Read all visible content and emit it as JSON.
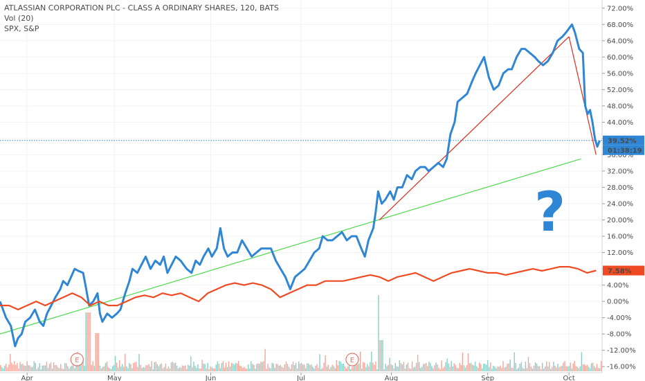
{
  "legend": {
    "title": "ATLASSIAN CORPORATION PLC - CLASS A ORDINARY SHARES, 120, BATS",
    "vol": "Vol (20)",
    "compare": "SPX, S&P"
  },
  "annotation_text": "?",
  "earnings_marker": "E",
  "chart_data": {
    "type": "line",
    "yaxis": {
      "unit": "%",
      "ylim": [
        -17.5,
        74
      ],
      "ticks": [
        "72.00%",
        "68.00%",
        "64.00%",
        "60.00%",
        "56.00%",
        "52.00%",
        "48.00%",
        "44.00%",
        "40.00%",
        "36.00%",
        "32.00%",
        "28.00%",
        "24.00%",
        "20.00%",
        "16.00%",
        "12.00%",
        "8.00%",
        "4.00%",
        "0.00%",
        "-4.00%",
        "-8.00%",
        "-12.00%",
        "-16.00%"
      ],
      "tick_values": [
        72,
        68,
        64,
        60,
        56,
        52,
        48,
        44,
        40,
        36,
        32,
        28,
        24,
        20,
        16,
        12,
        8,
        4,
        0,
        -4,
        -8,
        -12,
        -16
      ]
    },
    "xaxis": {
      "xlim": [
        0,
        1
      ],
      "months": [
        {
          "label": "Apr",
          "pos": 0.045
        },
        {
          "label": "May",
          "pos": 0.19
        },
        {
          "label": "Jun",
          "pos": 0.35
        },
        {
          "label": "Jul",
          "pos": 0.5
        },
        {
          "label": "Aug",
          "pos": 0.65
        },
        {
          "label": "Sep",
          "pos": 0.81
        },
        {
          "label": "Oct",
          "pos": 0.945
        }
      ]
    },
    "series": [
      {
        "color": "#2f86d4",
        "points": [
          [
            0,
            0
          ],
          [
            0.01,
            -4
          ],
          [
            0.018,
            -6
          ],
          [
            0.025,
            -11
          ],
          [
            0.03,
            -9
          ],
          [
            0.036,
            -8
          ],
          [
            0.042,
            -5
          ],
          [
            0.05,
            -4
          ],
          [
            0.058,
            -2
          ],
          [
            0.066,
            -5
          ],
          [
            0.072,
            -6
          ],
          [
            0.078,
            -3
          ],
          [
            0.085,
            -1
          ],
          [
            0.092,
            1
          ],
          [
            0.1,
            3
          ],
          [
            0.105,
            5
          ],
          [
            0.112,
            4
          ],
          [
            0.118,
            6
          ],
          [
            0.124,
            8
          ],
          [
            0.13,
            7.5
          ],
          [
            0.138,
            7
          ],
          [
            0.142,
            4
          ],
          [
            0.148,
            -1
          ],
          [
            0.155,
            0
          ],
          [
            0.162,
            2
          ],
          [
            0.166,
            -3
          ],
          [
            0.17,
            -5
          ],
          [
            0.178,
            -3
          ],
          [
            0.186,
            -4
          ],
          [
            0.194,
            -3
          ],
          [
            0.2,
            -2
          ],
          [
            0.208,
            2
          ],
          [
            0.215,
            5
          ],
          [
            0.22,
            8
          ],
          [
            0.228,
            7
          ],
          [
            0.235,
            9
          ],
          [
            0.242,
            11
          ],
          [
            0.25,
            8
          ],
          [
            0.258,
            10
          ],
          [
            0.266,
            9
          ],
          [
            0.272,
            11
          ],
          [
            0.278,
            7
          ],
          [
            0.285,
            9
          ],
          [
            0.292,
            11
          ],
          [
            0.3,
            10
          ],
          [
            0.31,
            8
          ],
          [
            0.318,
            7
          ],
          [
            0.325,
            10
          ],
          [
            0.332,
            9
          ],
          [
            0.338,
            11
          ],
          [
            0.346,
            13
          ],
          [
            0.352,
            11
          ],
          [
            0.36,
            13
          ],
          [
            0.366,
            18
          ],
          [
            0.372,
            13
          ],
          [
            0.378,
            11
          ],
          [
            0.386,
            12
          ],
          [
            0.394,
            12
          ],
          [
            0.402,
            15
          ],
          [
            0.41,
            13
          ],
          [
            0.418,
            11
          ],
          [
            0.426,
            12
          ],
          [
            0.434,
            13
          ],
          [
            0.442,
            13
          ],
          [
            0.45,
            13
          ],
          [
            0.458,
            10
          ],
          [
            0.466,
            8
          ],
          [
            0.474,
            6
          ],
          [
            0.482,
            3
          ],
          [
            0.49,
            6
          ],
          [
            0.498,
            7
          ],
          [
            0.506,
            8
          ],
          [
            0.514,
            10
          ],
          [
            0.522,
            12
          ],
          [
            0.53,
            13
          ],
          [
            0.536,
            16
          ],
          [
            0.544,
            15
          ],
          [
            0.552,
            15
          ],
          [
            0.56,
            16
          ],
          [
            0.568,
            17
          ],
          [
            0.576,
            15
          ],
          [
            0.584,
            16
          ],
          [
            0.592,
            16
          ],
          [
            0.6,
            13
          ],
          [
            0.606,
            11
          ],
          [
            0.612,
            15
          ],
          [
            0.62,
            18
          ],
          [
            0.624,
            22
          ],
          [
            0.628,
            27
          ],
          [
            0.634,
            24
          ],
          [
            0.64,
            25
          ],
          [
            0.648,
            27
          ],
          [
            0.654,
            25
          ],
          [
            0.66,
            28
          ],
          [
            0.668,
            28
          ],
          [
            0.676,
            31
          ],
          [
            0.684,
            30
          ],
          [
            0.69,
            32
          ],
          [
            0.698,
            33
          ],
          [
            0.706,
            33
          ],
          [
            0.712,
            32
          ],
          [
            0.72,
            33
          ],
          [
            0.728,
            34
          ],
          [
            0.736,
            33
          ],
          [
            0.742,
            35
          ],
          [
            0.748,
            41
          ],
          [
            0.755,
            44
          ],
          [
            0.76,
            49
          ],
          [
            0.768,
            50
          ],
          [
            0.776,
            51
          ],
          [
            0.784,
            54
          ],
          [
            0.79,
            56
          ],
          [
            0.797,
            58
          ],
          [
            0.804,
            60
          ],
          [
            0.812,
            55
          ],
          [
            0.82,
            52
          ],
          [
            0.828,
            53
          ],
          [
            0.836,
            56
          ],
          [
            0.844,
            57
          ],
          [
            0.85,
            57
          ],
          [
            0.858,
            60
          ],
          [
            0.866,
            62
          ],
          [
            0.872,
            62
          ],
          [
            0.88,
            61
          ],
          [
            0.888,
            60
          ],
          [
            0.894,
            59
          ],
          [
            0.902,
            58
          ],
          [
            0.91,
            59
          ],
          [
            0.918,
            61
          ],
          [
            0.926,
            64
          ],
          [
            0.934,
            65
          ],
          [
            0.94,
            66
          ],
          [
            0.945,
            67
          ],
          [
            0.95,
            68
          ],
          [
            0.955,
            66
          ],
          [
            0.962,
            62
          ],
          [
            0.968,
            61
          ],
          [
            0.972,
            48
          ],
          [
            0.976,
            46
          ],
          [
            0.98,
            47
          ],
          [
            0.984,
            44
          ],
          [
            0.988,
            40
          ],
          [
            0.992,
            38
          ],
          [
            0.996,
            39.5
          ]
        ]
      },
      {
        "color": "#f04a23",
        "points": [
          [
            0,
            -1
          ],
          [
            0.015,
            -1
          ],
          [
            0.03,
            -2
          ],
          [
            0.045,
            -1
          ],
          [
            0.06,
            0
          ],
          [
            0.075,
            -1
          ],
          [
            0.09,
            0
          ],
          [
            0.105,
            1
          ],
          [
            0.12,
            2
          ],
          [
            0.135,
            1
          ],
          [
            0.15,
            -1
          ],
          [
            0.165,
            0
          ],
          [
            0.18,
            -1
          ],
          [
            0.195,
            -1
          ],
          [
            0.21,
            0
          ],
          [
            0.225,
            1
          ],
          [
            0.24,
            1.5
          ],
          [
            0.255,
            1
          ],
          [
            0.27,
            2
          ],
          [
            0.285,
            1.5
          ],
          [
            0.3,
            2
          ],
          [
            0.315,
            1
          ],
          [
            0.33,
            0
          ],
          [
            0.345,
            2
          ],
          [
            0.36,
            3
          ],
          [
            0.375,
            4
          ],
          [
            0.39,
            4.5
          ],
          [
            0.405,
            4
          ],
          [
            0.42,
            4.5
          ],
          [
            0.435,
            4
          ],
          [
            0.45,
            3
          ],
          [
            0.465,
            1
          ],
          [
            0.48,
            2
          ],
          [
            0.495,
            3
          ],
          [
            0.51,
            4
          ],
          [
            0.525,
            4
          ],
          [
            0.54,
            5
          ],
          [
            0.555,
            5
          ],
          [
            0.57,
            5
          ],
          [
            0.585,
            5.5
          ],
          [
            0.6,
            6
          ],
          [
            0.615,
            6.5
          ],
          [
            0.63,
            6
          ],
          [
            0.645,
            5
          ],
          [
            0.66,
            6
          ],
          [
            0.675,
            6.5
          ],
          [
            0.69,
            7
          ],
          [
            0.705,
            6
          ],
          [
            0.72,
            5
          ],
          [
            0.735,
            6
          ],
          [
            0.75,
            7
          ],
          [
            0.765,
            7.5
          ],
          [
            0.78,
            8
          ],
          [
            0.795,
            7.5
          ],
          [
            0.81,
            7
          ],
          [
            0.825,
            7
          ],
          [
            0.84,
            6.5
          ],
          [
            0.855,
            7
          ],
          [
            0.87,
            7.5
          ],
          [
            0.885,
            8
          ],
          [
            0.9,
            7.5
          ],
          [
            0.915,
            8
          ],
          [
            0.93,
            8.5
          ],
          [
            0.945,
            8.5
          ],
          [
            0.96,
            8
          ],
          [
            0.975,
            7
          ],
          [
            0.99,
            7.58
          ]
        ]
      }
    ],
    "trendlines": [
      {
        "color": "#4cd94c",
        "from": [
          0,
          -8
        ],
        "to": [
          0.965,
          35
        ]
      },
      {
        "color": "#e02b1c",
        "from": [
          0.63,
          20
        ],
        "to": [
          0.945,
          65
        ]
      },
      {
        "color": "#e02b1c",
        "from": [
          0.945,
          65
        ],
        "to": [
          0.99,
          36
        ]
      }
    ],
    "last_value_line": {
      "color": "#2f86d4",
      "value": 39.52
    },
    "price_label": {
      "value": "39.52%",
      "time": "01:38:19",
      "color": "#2f86d4"
    },
    "spx_label": {
      "value": "7.58%",
      "color": "#f04a23"
    },
    "earnings_positions": [
      0.128,
      0.585
    ],
    "volume_colors": {
      "up": "#74c6bd",
      "down": "#f2968a"
    }
  }
}
